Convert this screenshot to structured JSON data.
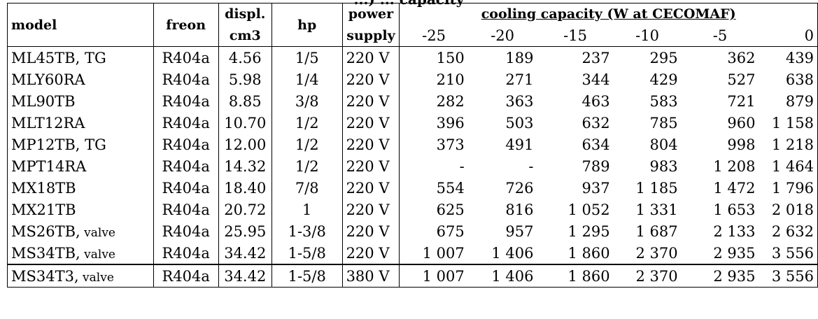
{
  "title_fragment": "...) ... capacity",
  "headers": {
    "model": "model",
    "freon": "freon",
    "displ_line1": "displ.",
    "displ_line2": "cm3",
    "hp": "hp",
    "power_line1": "power",
    "power_line2": "supply",
    "cooling_capacity": "cooling capacity (W at CECOMAF)",
    "temps": [
      "-25",
      "-20",
      "-15",
      "-10",
      "-5",
      "0"
    ]
  },
  "rows": [
    {
      "model": "ML45TB, TG",
      "model_suffix": "",
      "freon": "R404a",
      "displ": "4.56",
      "hp": "1/5",
      "power": "220 V",
      "cap": [
        "150",
        "189",
        "237",
        "295",
        "362",
        "439"
      ]
    },
    {
      "model": "MLY60RA",
      "model_suffix": "",
      "freon": "R404a",
      "displ": "5.98",
      "hp": "1/4",
      "power": "220 V",
      "cap": [
        "210",
        "271",
        "344",
        "429",
        "527",
        "638"
      ]
    },
    {
      "model": "ML90TB",
      "model_suffix": "",
      "freon": "R404a",
      "displ": "8.85",
      "hp": "3/8",
      "power": "220 V",
      "cap": [
        "282",
        "363",
        "463",
        "583",
        "721",
        "879"
      ]
    },
    {
      "model": "MLT12RA",
      "model_suffix": "",
      "freon": "R404a",
      "displ": "10.70",
      "hp": "1/2",
      "power": "220 V",
      "cap": [
        "396",
        "503",
        "632",
        "785",
        "960",
        "1 158"
      ]
    },
    {
      "model": "MP12TB, TG",
      "model_suffix": "",
      "freon": "R404a",
      "displ": "12.00",
      "hp": "1/2",
      "power": "220 V",
      "cap": [
        "373",
        "491",
        "634",
        "804",
        "998",
        "1 218"
      ]
    },
    {
      "model": "MPT14RA",
      "model_suffix": "",
      "freon": "R404a",
      "displ": "14.32",
      "hp": "1/2",
      "power": "220 V",
      "cap": [
        "-",
        "-",
        "789",
        "983",
        "1 208",
        "1 464"
      ]
    },
    {
      "model": "MX18TB",
      "model_suffix": "",
      "freon": "R404a",
      "displ": "18.40",
      "hp": "7/8",
      "power": "220 V",
      "cap": [
        "554",
        "726",
        "937",
        "1 185",
        "1 472",
        "1 796"
      ]
    },
    {
      "model": "MX21TB",
      "model_suffix": "",
      "freon": "R404a",
      "displ": "20.72",
      "hp": "1",
      "power": "220 V",
      "cap": [
        "625",
        "816",
        "1 052",
        "1 331",
        "1 653",
        "2 018"
      ]
    },
    {
      "model": "MS26TB,",
      "model_suffix": " valve",
      "freon": "R404a",
      "displ": "25.95",
      "hp": "1-3/8",
      "power": "220 V",
      "cap": [
        "675",
        "957",
        "1 295",
        "1 687",
        "2 133",
        "2 632"
      ]
    },
    {
      "model": "MS34TB,",
      "model_suffix": " valve",
      "freon": "R404a",
      "displ": "34.42",
      "hp": "1-5/8",
      "power": "220 V",
      "cap": [
        "1 007",
        "1 406",
        "1 860",
        "2 370",
        "2 935",
        "3 556"
      ]
    },
    {
      "model": "MS34T3,",
      "model_suffix": " valve",
      "freon": "R404a",
      "displ": "34.42",
      "hp": "1-5/8",
      "power": "380 V",
      "cap": [
        "1 007",
        "1 406",
        "1 860",
        "2 370",
        "2 935",
        "3 556"
      ]
    }
  ]
}
